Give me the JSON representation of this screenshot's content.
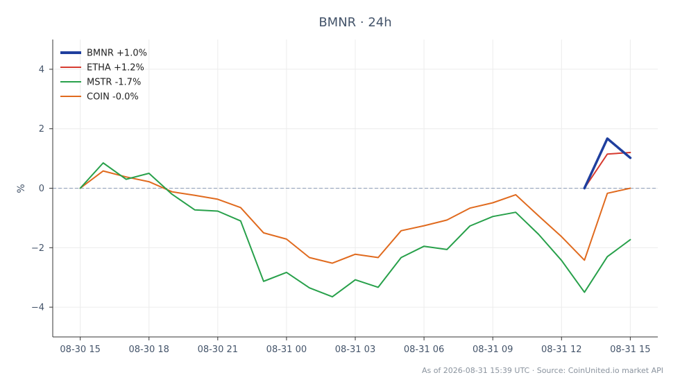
{
  "chart_data": {
    "type": "line",
    "title": "BMNR · 24h",
    "xlabel": "",
    "ylabel": "%",
    "ylim": [
      -5,
      5
    ],
    "yticks": [
      -4,
      -2,
      0,
      2,
      4
    ],
    "ytick_labels": [
      "−4",
      "−2",
      "0",
      "2",
      "4"
    ],
    "xlim": [
      "2026-08-30 13:48",
      "2026-08-31 16:12"
    ],
    "xticks": [
      "2026-08-30 15:00",
      "2026-08-30 18:00",
      "2026-08-30 21:00",
      "2026-08-31 00:00",
      "2026-08-31 03:00",
      "2026-08-31 06:00",
      "2026-08-31 09:00",
      "2026-08-31 12:00",
      "2026-08-31 15:00"
    ],
    "xtick_labels": [
      "08-30 15",
      "08-30 18",
      "08-30 21",
      "08-31 00",
      "08-31 03",
      "08-31 06",
      "08-31 09",
      "08-31 12",
      "08-31 15"
    ],
    "grid": true,
    "legend": "top-left",
    "reference_line": {
      "y": 0,
      "style": "dashed",
      "color": "#8d9cb5"
    },
    "series": [
      {
        "name": "BMNR +1.0%",
        "color": "#1f3f9e",
        "x": [
          "2026-08-31 13:00",
          "2026-08-31 14:00",
          "2026-08-31 15:00"
        ],
        "y": [
          0,
          1.67,
          1.02
        ]
      },
      {
        "name": "ETHA +1.2%",
        "color": "#d63a2f",
        "x": [
          "2026-08-31 13:00",
          "2026-08-31 14:00",
          "2026-08-31 15:00"
        ],
        "y": [
          0,
          1.15,
          1.2
        ]
      },
      {
        "name": "MSTR -1.7%",
        "color": "#27a04a",
        "x": [
          "2026-08-30 15:00",
          "2026-08-30 16:00",
          "2026-08-30 17:00",
          "2026-08-30 18:00",
          "2026-08-30 19:00",
          "2026-08-30 20:00",
          "2026-08-30 21:00",
          "2026-08-30 22:00",
          "2026-08-30 23:00",
          "2026-08-31 00:00",
          "2026-08-31 01:00",
          "2026-08-31 02:00",
          "2026-08-31 03:00",
          "2026-08-31 04:00",
          "2026-08-31 05:00",
          "2026-08-31 06:00",
          "2026-08-31 07:00",
          "2026-08-31 08:00",
          "2026-08-31 09:00",
          "2026-08-31 10:00",
          "2026-08-31 11:00",
          "2026-08-31 12:00",
          "2026-08-31 13:00",
          "2026-08-31 14:00",
          "2026-08-31 15:00"
        ],
        "y": [
          0,
          0.85,
          0.3,
          0.5,
          -0.2,
          -0.73,
          -0.77,
          -1.1,
          -3.13,
          -2.83,
          -3.35,
          -3.65,
          -3.08,
          -3.33,
          -2.33,
          -1.95,
          -2.06,
          -1.27,
          -0.95,
          -0.81,
          -1.55,
          -2.43,
          -3.5,
          -2.3,
          -1.73
        ]
      },
      {
        "name": "COIN -0.0%",
        "color": "#e06a1e",
        "x": [
          "2026-08-30 15:00",
          "2026-08-30 16:00",
          "2026-08-30 17:00",
          "2026-08-30 18:00",
          "2026-08-30 19:00",
          "2026-08-30 20:00",
          "2026-08-30 21:00",
          "2026-08-30 22:00",
          "2026-08-30 23:00",
          "2026-08-31 00:00",
          "2026-08-31 01:00",
          "2026-08-31 02:00",
          "2026-08-31 03:00",
          "2026-08-31 04:00",
          "2026-08-31 05:00",
          "2026-08-31 06:00",
          "2026-08-31 07:00",
          "2026-08-31 08:00",
          "2026-08-31 09:00",
          "2026-08-31 10:00",
          "2026-08-31 11:00",
          "2026-08-31 12:00",
          "2026-08-31 13:00",
          "2026-08-31 14:00",
          "2026-08-31 15:00"
        ],
        "y": [
          0,
          0.58,
          0.38,
          0.22,
          -0.12,
          -0.24,
          -0.37,
          -0.65,
          -1.5,
          -1.71,
          -2.33,
          -2.52,
          -2.22,
          -2.33,
          -1.43,
          -1.26,
          -1.07,
          -0.67,
          -0.49,
          -0.22,
          -0.93,
          -1.63,
          -2.42,
          -0.17,
          0
        ]
      }
    ],
    "footer": "As of 2026-08-31 15:39 UTC · Source: CoinUnited.io market API"
  }
}
